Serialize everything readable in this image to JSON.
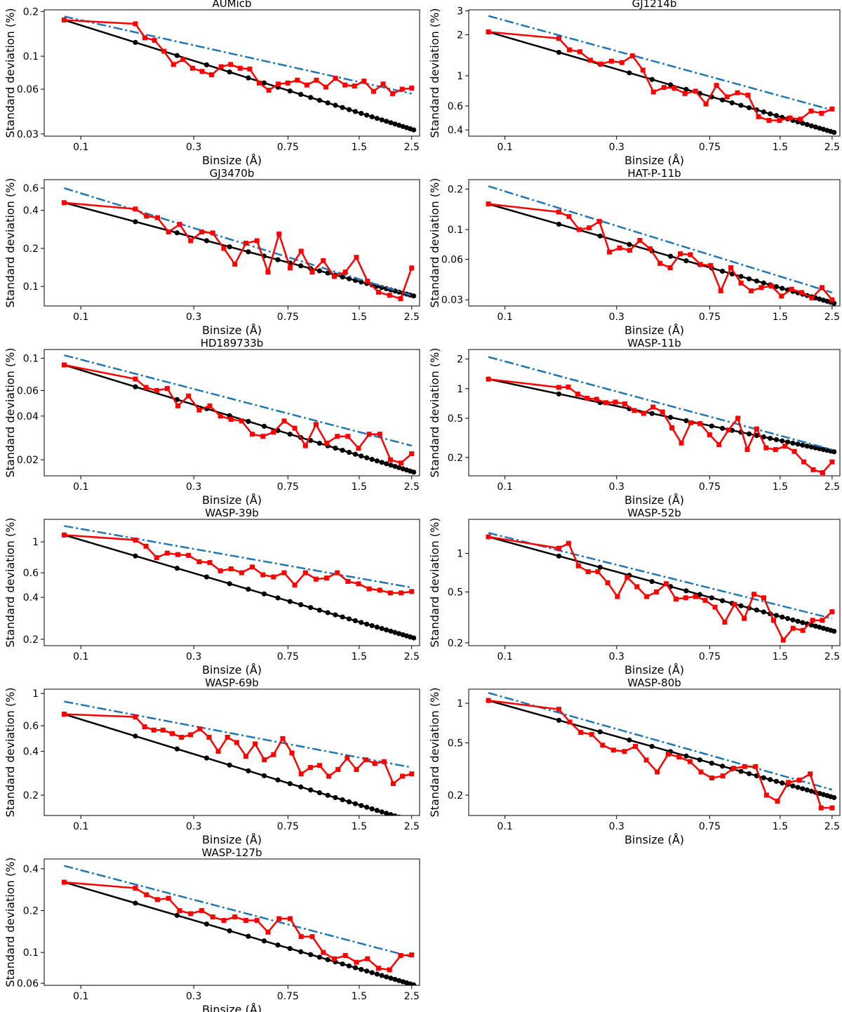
{
  "figure": {
    "xlabel": "Binsize (Å)",
    "ylabel": "Standard deviation (%)",
    "x_ticks": [
      {
        "v": 0.1,
        "label": "0.1"
      },
      {
        "v": 0.3,
        "label": "0.3"
      },
      {
        "v": 0.75,
        "label": "0.75"
      },
      {
        "v": 1.5,
        "label": "1.5"
      },
      {
        "v": 2.5,
        "label": "2.5"
      }
    ],
    "colors": {
      "observed": "#ff0000",
      "white_noise": "#000000",
      "fit": "#1f77b4"
    }
  },
  "chart_data": [
    {
      "type": "line",
      "title": "AUMicb",
      "xscale": "log",
      "yscale": "log",
      "xlim": [
        0.07,
        2.7
      ],
      "ylim": [
        0.029,
        0.205
      ],
      "y_ticks": [
        {
          "v": 0.03,
          "label": "0.03"
        },
        {
          "v": 0.06,
          "label": "0.06"
        },
        {
          "v": 0.1,
          "label": "0.1"
        },
        {
          "v": 0.2,
          "label": "0.2"
        }
      ],
      "y0_white": 0.175,
      "exp_white": -0.5,
      "fit": {
        "y_start": 0.185,
        "y_end": 0.056,
        "x_start": 0.085,
        "x_end": 2.5
      },
      "observed": [
        0.175,
        0.165,
        0.133,
        0.128,
        0.108,
        0.088,
        0.095,
        0.083,
        0.079,
        0.075,
        0.085,
        0.088,
        0.083,
        0.082,
        0.066,
        0.059,
        0.065,
        0.066,
        0.069,
        0.064,
        0.069,
        0.062,
        0.071,
        0.064,
        0.063,
        0.068,
        0.058,
        0.065,
        0.056,
        0.06,
        0.061
      ]
    },
    {
      "type": "line",
      "title": "GJ1214b",
      "xscale": "log",
      "yscale": "log",
      "xlim": [
        0.07,
        2.7
      ],
      "ylim": [
        0.36,
        3.05
      ],
      "y_ticks": [
        {
          "v": 0.4,
          "label": "0.4"
        },
        {
          "v": 0.6,
          "label": "0.6"
        },
        {
          "v": 1,
          "label": "1"
        },
        {
          "v": 2,
          "label": "2"
        },
        {
          "v": 3,
          "label": "3"
        }
      ],
      "y0_white": 2.1,
      "exp_white": -0.5,
      "fit": {
        "y_start": 2.75,
        "y_end": 0.56,
        "x_start": 0.085,
        "x_end": 2.5
      },
      "observed": [
        2.1,
        1.88,
        1.55,
        1.5,
        1.3,
        1.22,
        1.28,
        1.25,
        1.4,
        1.1,
        0.76,
        0.82,
        0.81,
        0.74,
        0.77,
        0.62,
        0.85,
        0.7,
        0.75,
        0.72,
        0.5,
        0.47,
        0.47,
        0.49,
        0.48,
        0.55,
        0.53,
        0.57
      ]
    },
    {
      "type": "line",
      "title": "GJ3470b",
      "xscale": "log",
      "yscale": "log",
      "xlim": [
        0.07,
        2.7
      ],
      "ylim": [
        0.07,
        0.7
      ],
      "y_ticks": [
        {
          "v": 0.1,
          "label": "0.1"
        },
        {
          "v": 0.2,
          "label": "0.2"
        },
        {
          "v": 0.4,
          "label": "0.4"
        },
        {
          "v": 0.6,
          "label": "0.6"
        }
      ],
      "y0_white": 0.46,
      "exp_white": -0.5,
      "fit": {
        "y_start": 0.6,
        "y_end": 0.085,
        "x_start": 0.085,
        "x_end": 2.5
      },
      "observed": [
        0.46,
        0.41,
        0.36,
        0.35,
        0.27,
        0.31,
        0.23,
        0.27,
        0.265,
        0.2,
        0.15,
        0.22,
        0.23,
        0.13,
        0.26,
        0.14,
        0.19,
        0.13,
        0.16,
        0.12,
        0.13,
        0.17,
        0.11,
        0.09,
        0.085,
        0.08,
        0.14
      ]
    },
    {
      "type": "line",
      "title": "HAT-P-11b",
      "xscale": "log",
      "yscale": "log",
      "xlim": [
        0.07,
        2.7
      ],
      "ylim": [
        0.027,
        0.235
      ],
      "y_ticks": [
        {
          "v": 0.03,
          "label": "0.03"
        },
        {
          "v": 0.06,
          "label": "0.06"
        },
        {
          "v": 0.1,
          "label": "0.1"
        },
        {
          "v": 0.2,
          "label": "0.2"
        }
      ],
      "y0_white": 0.155,
      "exp_white": -0.5,
      "fit": {
        "y_start": 0.21,
        "y_end": 0.034,
        "x_start": 0.085,
        "x_end": 2.5
      },
      "observed": [
        0.155,
        0.135,
        0.125,
        0.1,
        0.103,
        0.115,
        0.068,
        0.073,
        0.07,
        0.083,
        0.072,
        0.056,
        0.052,
        0.066,
        0.065,
        0.055,
        0.054,
        0.035,
        0.052,
        0.04,
        0.035,
        0.037,
        0.038,
        0.032,
        0.036,
        0.034,
        0.031,
        0.037,
        0.03
      ]
    },
    {
      "type": "line",
      "title": "HD189733b",
      "xscale": "log",
      "yscale": "log",
      "xlim": [
        0.07,
        2.7
      ],
      "ylim": [
        0.0155,
        0.115
      ],
      "y_ticks": [
        {
          "v": 0.02,
          "label": "0.02"
        },
        {
          "v": 0.04,
          "label": "0.04"
        },
        {
          "v": 0.06,
          "label": "0.06"
        },
        {
          "v": 0.1,
          "label": "0.1"
        }
      ],
      "y0_white": 0.09,
      "exp_white": -0.5,
      "fit": {
        "y_start": 0.105,
        "y_end": 0.025,
        "x_start": 0.085,
        "x_end": 2.5
      },
      "observed": [
        0.09,
        0.072,
        0.063,
        0.06,
        0.062,
        0.047,
        0.055,
        0.044,
        0.047,
        0.04,
        0.038,
        0.037,
        0.03,
        0.029,
        0.031,
        0.037,
        0.033,
        0.025,
        0.035,
        0.026,
        0.029,
        0.029,
        0.024,
        0.03,
        0.03,
        0.02,
        0.019,
        0.022
      ]
    },
    {
      "type": "line",
      "title": "WASP-11b",
      "xscale": "log",
      "yscale": "log",
      "xlim": [
        0.07,
        2.7
      ],
      "ylim": [
        0.13,
        2.5
      ],
      "y_ticks": [
        {
          "v": 0.2,
          "label": "0.2"
        },
        {
          "v": 0.5,
          "label": "0.5"
        },
        {
          "v": 1,
          "label": "1"
        },
        {
          "v": 2,
          "label": "2"
        }
      ],
      "y0_white": 1.25,
      "exp_white": -0.5,
      "fit": {
        "y_start": 2.1,
        "y_end": 0.24,
        "x_start": 0.085,
        "x_end": 2.5
      },
      "observed": [
        1.25,
        1.03,
        1.04,
        0.88,
        0.8,
        0.78,
        0.72,
        0.73,
        0.7,
        0.6,
        0.56,
        0.65,
        0.58,
        0.4,
        0.28,
        0.45,
        0.44,
        0.34,
        0.27,
        0.38,
        0.5,
        0.24,
        0.39,
        0.25,
        0.24,
        0.26,
        0.23,
        0.18,
        0.15,
        0.14,
        0.18
      ]
    },
    {
      "type": "line",
      "title": "WASP-39b",
      "xscale": "log",
      "yscale": "log",
      "xlim": [
        0.07,
        2.7
      ],
      "ylim": [
        0.18,
        1.45
      ],
      "y_ticks": [
        {
          "v": 0.2,
          "label": "0.2"
        },
        {
          "v": 0.4,
          "label": "0.4"
        },
        {
          "v": 0.6,
          "label": "0.6"
        },
        {
          "v": 1,
          "label": "1"
        }
      ],
      "y0_white": 1.12,
      "exp_white": -0.5,
      "fit": {
        "y_start": 1.3,
        "y_end": 0.47,
        "x_start": 0.085,
        "x_end": 2.5
      },
      "observed": [
        1.12,
        1.03,
        0.93,
        0.77,
        0.83,
        0.81,
        0.8,
        0.72,
        0.71,
        0.62,
        0.64,
        0.6,
        0.66,
        0.58,
        0.56,
        0.6,
        0.49,
        0.6,
        0.54,
        0.55,
        0.6,
        0.52,
        0.5,
        0.46,
        0.45,
        0.43,
        0.43,
        0.44
      ]
    },
    {
      "type": "line",
      "title": "WASP-52b",
      "xscale": "log",
      "yscale": "log",
      "xlim": [
        0.07,
        2.7
      ],
      "ylim": [
        0.19,
        1.85
      ],
      "y_ticks": [
        {
          "v": 0.2,
          "label": "0.2"
        },
        {
          "v": 0.5,
          "label": "0.5"
        },
        {
          "v": 1,
          "label": "1"
        }
      ],
      "y0_white": 1.35,
      "exp_white": -0.5,
      "fit": {
        "y_start": 1.45,
        "y_end": 0.31,
        "x_start": 0.085,
        "x_end": 2.5
      },
      "observed": [
        1.35,
        1.1,
        1.2,
        0.8,
        0.72,
        0.72,
        0.59,
        0.46,
        0.65,
        0.55,
        0.46,
        0.5,
        0.58,
        0.44,
        0.45,
        0.46,
        0.43,
        0.38,
        0.29,
        0.4,
        0.31,
        0.48,
        0.45,
        0.3,
        0.21,
        0.26,
        0.25,
        0.3,
        0.3,
        0.35
      ]
    },
    {
      "type": "line",
      "title": "WASP-69b",
      "xscale": "log",
      "yscale": "log",
      "xlim": [
        0.07,
        2.7
      ],
      "ylim": [
        0.145,
        1.07
      ],
      "y_ticks": [
        {
          "v": 0.2,
          "label": "0.2"
        },
        {
          "v": 0.4,
          "label": "0.4"
        },
        {
          "v": 0.6,
          "label": "0.6"
        },
        {
          "v": 1,
          "label": "1"
        }
      ],
      "y0_white": 0.72,
      "exp_white": -0.5,
      "fit": {
        "y_start": 0.88,
        "y_end": 0.31,
        "x_start": 0.085,
        "x_end": 2.5
      },
      "observed": [
        0.72,
        0.69,
        0.59,
        0.56,
        0.56,
        0.53,
        0.5,
        0.52,
        0.57,
        0.5,
        0.4,
        0.5,
        0.46,
        0.37,
        0.45,
        0.35,
        0.38,
        0.49,
        0.39,
        0.28,
        0.31,
        0.32,
        0.27,
        0.3,
        0.36,
        0.3,
        0.35,
        0.33,
        0.34,
        0.24,
        0.27,
        0.28
      ]
    },
    {
      "type": "line",
      "title": "WASP-80b",
      "xscale": "log",
      "yscale": "log",
      "xlim": [
        0.07,
        2.7
      ],
      "ylim": [
        0.14,
        1.28
      ],
      "y_ticks": [
        {
          "v": 0.2,
          "label": "0.2"
        },
        {
          "v": 0.5,
          "label": "0.5"
        },
        {
          "v": 1,
          "label": "1"
        }
      ],
      "y0_white": 1.05,
      "exp_white": -0.5,
      "fit": {
        "y_start": 1.2,
        "y_end": 0.22,
        "x_start": 0.085,
        "x_end": 2.5
      },
      "observed": [
        1.05,
        0.9,
        0.72,
        0.6,
        0.58,
        0.48,
        0.44,
        0.43,
        0.47,
        0.37,
        0.3,
        0.41,
        0.39,
        0.36,
        0.3,
        0.27,
        0.28,
        0.32,
        0.33,
        0.33,
        0.2,
        0.18,
        0.25,
        0.26,
        0.29,
        0.16,
        0.16
      ]
    },
    {
      "type": "line",
      "title": "WASP-127b",
      "xscale": "log",
      "yscale": "log",
      "xlim": [
        0.07,
        2.7
      ],
      "ylim": [
        0.058,
        0.47
      ],
      "y_ticks": [
        {
          "v": 0.06,
          "label": "0.06"
        },
        {
          "v": 0.1,
          "label": "0.1"
        },
        {
          "v": 0.2,
          "label": "0.2"
        },
        {
          "v": 0.4,
          "label": "0.4"
        }
      ],
      "y0_white": 0.32,
      "exp_white": -0.5,
      "fit": {
        "y_start": 0.42,
        "y_end": 0.093,
        "x_start": 0.085,
        "x_end": 2.5
      },
      "observed": [
        0.32,
        0.29,
        0.26,
        0.24,
        0.245,
        0.2,
        0.19,
        0.2,
        0.18,
        0.17,
        0.18,
        0.17,
        0.17,
        0.14,
        0.175,
        0.175,
        0.13,
        0.13,
        0.1,
        0.09,
        0.095,
        0.085,
        0.09,
        0.077,
        0.075,
        0.095,
        0.096
      ]
    }
  ]
}
